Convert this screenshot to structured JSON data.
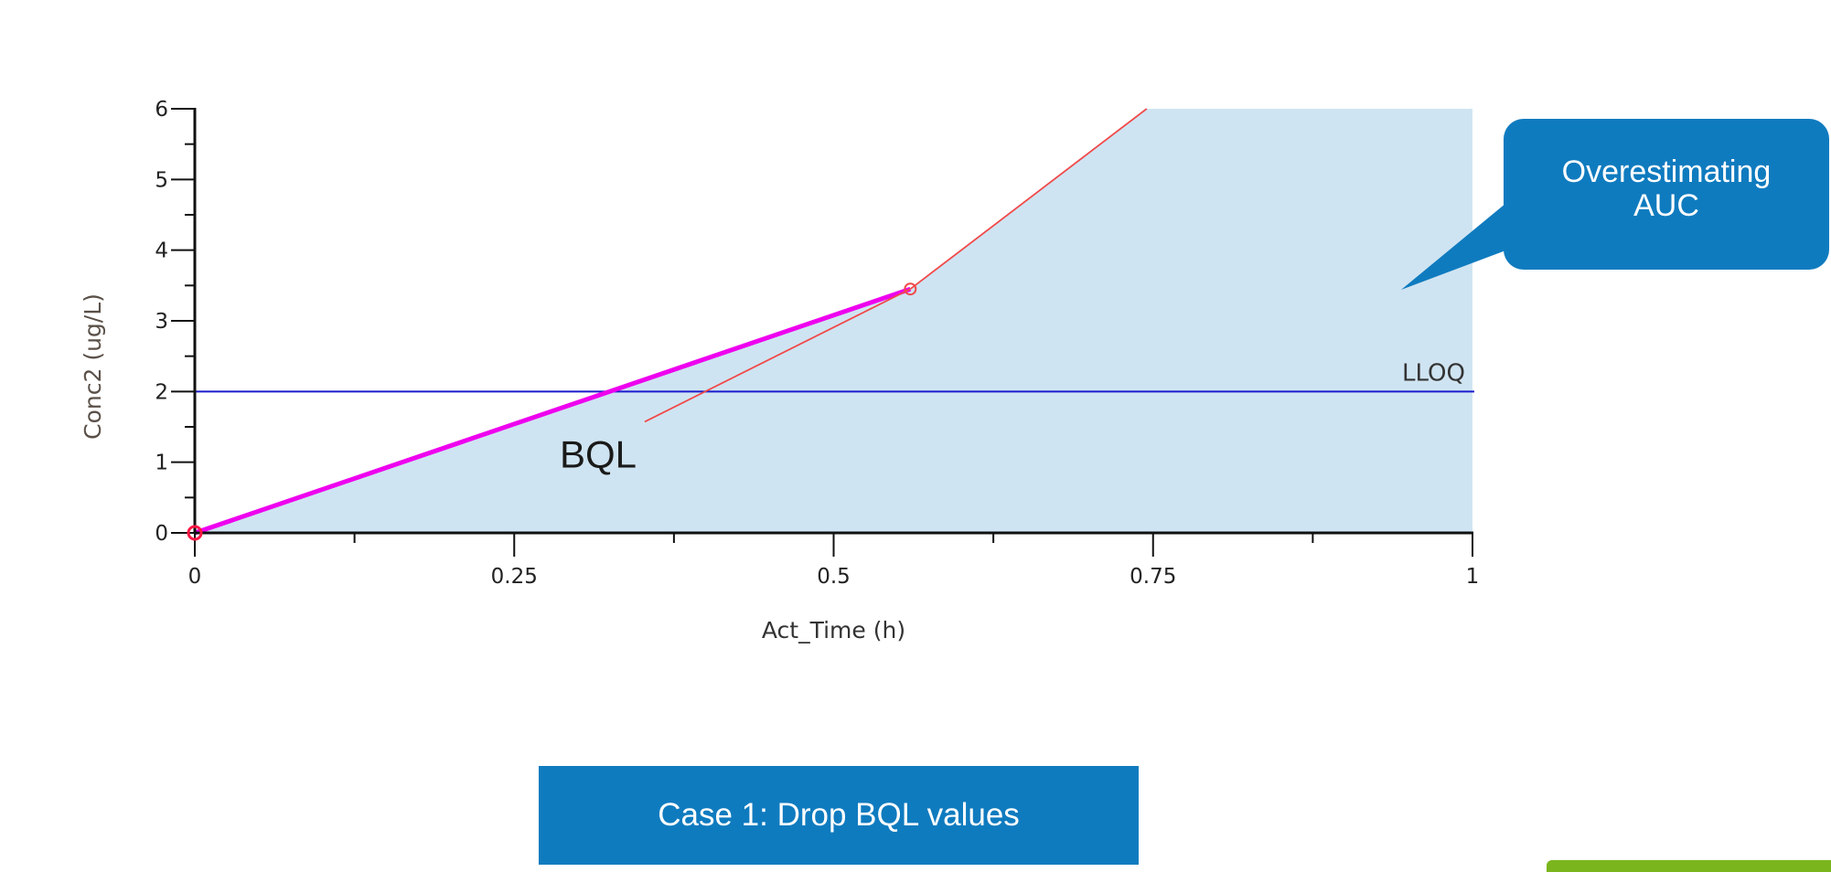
{
  "chart_data": {
    "type": "line",
    "xlabel": "Act_Time (h)",
    "ylabel": "Conc2 (ug/L)",
    "xlim": [
      0,
      1
    ],
    "ylim": [
      0,
      6
    ],
    "x_ticks": [
      "0",
      "0.25",
      "0.5",
      "0.75",
      "1"
    ],
    "y_ticks": [
      "0",
      "1",
      "2",
      "3",
      "4",
      "5",
      "6"
    ],
    "grid": false,
    "shaded_area": {
      "description": "AUC",
      "color": "#cfe4f2",
      "x": [
        0,
        0.56,
        0.745,
        1,
        1
      ],
      "y": [
        0,
        3.45,
        6,
        6,
        0
      ]
    },
    "series": [
      {
        "color": "#ee00ee",
        "x": [
          0,
          0.56
        ],
        "y": [
          0,
          3.45
        ]
      },
      {
        "color": "#f04a4a",
        "x": [
          0.56,
          0.745
        ],
        "y": [
          3.45,
          6
        ]
      }
    ],
    "markers": [
      {
        "x": 0,
        "y": 0,
        "color": "#ff1744"
      },
      {
        "x": 0.56,
        "y": 3.45,
        "color": "#f04a4a"
      }
    ],
    "reference_line": {
      "label": "LLOQ",
      "y": 2,
      "color": "#1a1acc"
    },
    "annotations": [
      {
        "text": "BQL",
        "x": 0.35,
        "y": 0.9,
        "points_to": {
          "x": 0.56,
          "y": 3.45
        }
      }
    ]
  },
  "callout": {
    "text": "Overestimating AUC",
    "color": "#0f7bbf"
  },
  "case_button": {
    "label": "Case 1: Drop BQL values",
    "color": "#0f7bbf"
  },
  "next_button": {
    "color": "#7ab51d"
  }
}
